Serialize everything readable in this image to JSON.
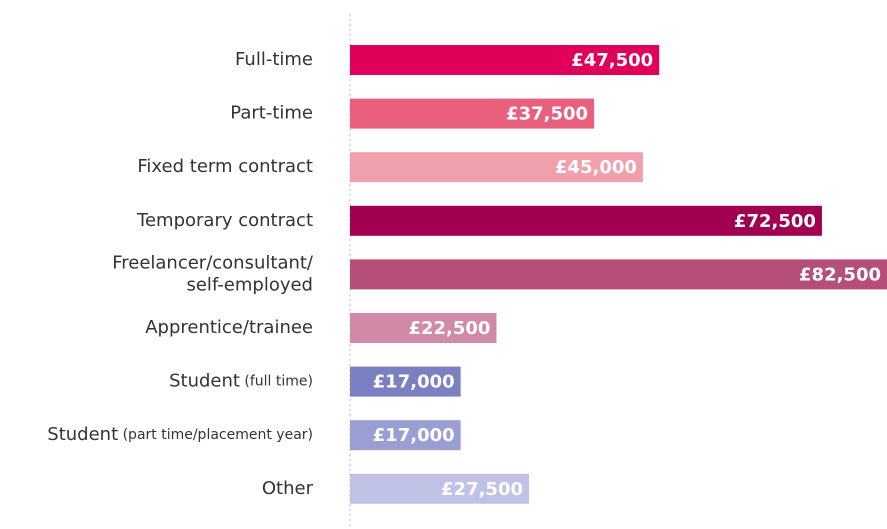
{
  "chart_data": {
    "type": "hbar",
    "categories": [
      "Full-time",
      "Part-time",
      "Fixed term contract",
      "Temporary contract",
      "Freelancer/consultant/\nself-employed",
      "Apprentice/trainee",
      "Student (full time)",
      "Student (part time/placement year)",
      "Other"
    ],
    "values": [
      47500,
      37500,
      45000,
      72500,
      82500,
      22500,
      17000,
      17000,
      27500
    ],
    "value_labels": [
      "£47,500",
      "£37,500",
      "£45,000",
      "£72,500",
      "£82,500",
      "£22,500",
      "£17,000",
      "£17,000",
      "£27,500"
    ],
    "colors": [
      "#e0005a",
      "#e8607e",
      "#f0a0ac",
      "#a0004f",
      "#b54f7a",
      "#d08aa5",
      "#7b80c2",
      "#9a9ed2",
      "#bfc2e4"
    ],
    "xlim": [
      0,
      82500
    ]
  }
}
